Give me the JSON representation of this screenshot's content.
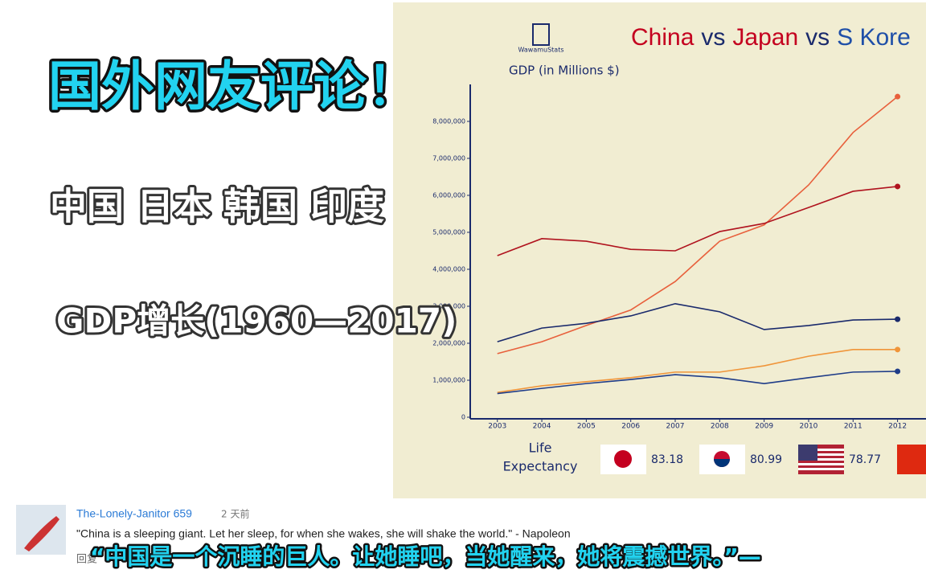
{
  "overlay": {
    "headline": "国外网友评论！",
    "countries": "中国 日本 韩国 印度",
    "subtitle": "GDP增长(1960—2017)"
  },
  "logo": "WawamuStats",
  "chart_data": {
    "type": "line",
    "title_parts": [
      "China",
      "vs",
      "Japan",
      "vs",
      "S Kore"
    ],
    "y_label": "GDP (in Millions $)",
    "x": [
      2003,
      2004,
      2005,
      2006,
      2007,
      2008,
      2009,
      2010,
      2011,
      2012
    ],
    "xlim": [
      2002.39,
      2012.64
    ],
    "xticks": [
      2003,
      2004,
      2005,
      2006,
      2007,
      2008,
      2009,
      2010,
      2011,
      2012
    ],
    "ylim": [
      0,
      9000000
    ],
    "yticks": [
      0,
      {
        "value": 1000000,
        "label": "1,000,000"
      },
      {
        "value": 2000000,
        "label": "2,000,000"
      },
      {
        "value": 3000000,
        "label": "3,000,000"
      },
      {
        "value": 4000000,
        "label": "4,000,000"
      },
      {
        "value": 5000000,
        "label": "5,000,000"
      },
      {
        "value": 6000000,
        "label": "6,000,000"
      },
      {
        "value": 7000000,
        "label": "7,000,000"
      },
      {
        "value": 8000000,
        "label": "8,000,000"
      }
    ],
    "series": [
      {
        "color": "#e8603c",
        "values": [
          1720000,
          2040000,
          2480000,
          2900000,
          3670000,
          4760000,
          5200000,
          6280000,
          7700000,
          8670000
        ]
      },
      {
        "color": "#b0131e",
        "values": [
          4370000,
          4830000,
          4760000,
          4540000,
          4500000,
          5020000,
          5240000,
          5670000,
          6110000,
          6240000
        ]
      },
      {
        "color": "#1a2a6c",
        "values": [
          2040000,
          2410000,
          2540000,
          2740000,
          3070000,
          2850000,
          2370000,
          2480000,
          2630000,
          2650000
        ]
      },
      {
        "color": "#f0953a",
        "values": [
          670000,
          850000,
          960000,
          1070000,
          1220000,
          1220000,
          1390000,
          1650000,
          1830000,
          1830000
        ]
      },
      {
        "color": "#1f3c88",
        "values": [
          640000,
          780000,
          910000,
          1020000,
          1150000,
          1070000,
          910000,
          1070000,
          1220000,
          1240000
        ]
      }
    ],
    "life_label": [
      "Life",
      "Expectancy"
    ],
    "life_values": [
      83.18,
      80.99,
      78.77
    ]
  },
  "comment": {
    "user": "The-Lonely-Janitor 659",
    "time": "2 天前",
    "text": "\"China is a sleeping giant. Let her sleep, for when she wakes, she will shake the world.\" - Napoleon",
    "reply": "回复",
    "caption": "“中国是一个沉睡的巨人。让她睡吧，当她醒来，她将震撼世界。”—"
  }
}
